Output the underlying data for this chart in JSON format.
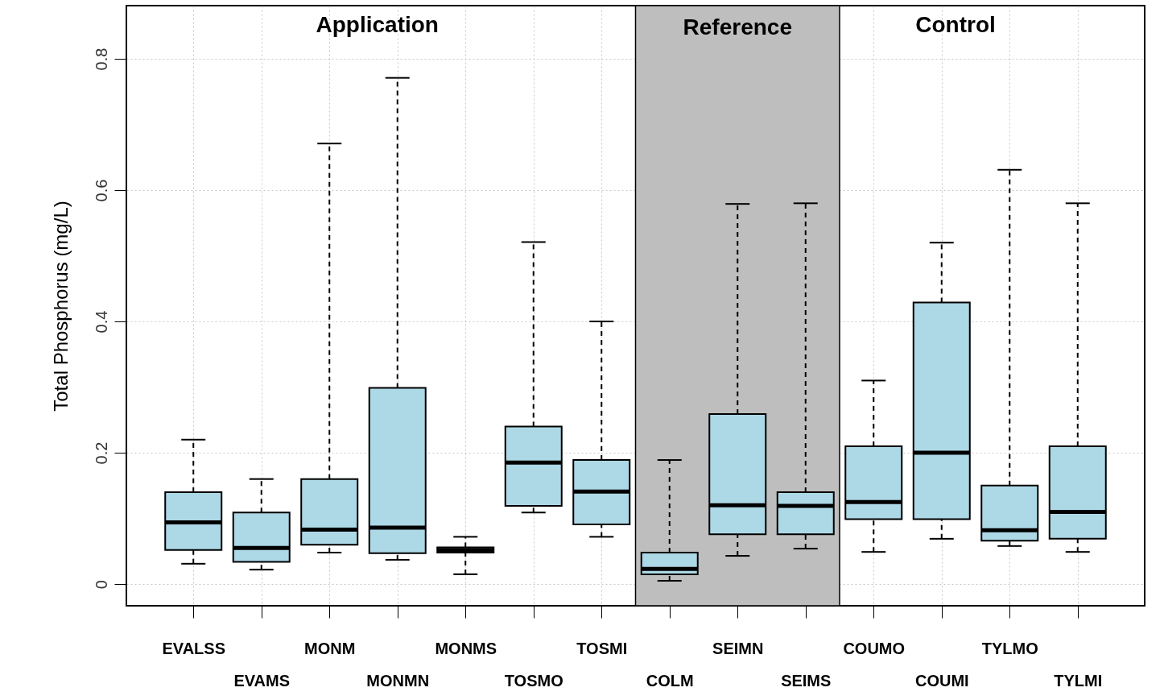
{
  "chart_data": {
    "type": "box",
    "ylabel": "Total Phosphorus (mg/L)",
    "categories": [
      "EVALSS",
      "EVAMS",
      "MONM",
      "MONMN",
      "MONMS",
      "TOSMO",
      "TOSMI",
      "COLM",
      "SEIMN",
      "SEIMS",
      "COUMO",
      "COUMI",
      "TYLMO",
      "TYLMI"
    ],
    "series": [
      {
        "color": "#add8e6",
        "boxes": [
          {
            "low": 0.031,
            "q1": 0.052,
            "median": 0.094,
            "q3": 0.14,
            "high": 0.22
          },
          {
            "low": 0.022,
            "q1": 0.034,
            "median": 0.055,
            "q3": 0.109,
            "high": 0.16
          },
          {
            "low": 0.048,
            "q1": 0.06,
            "median": 0.083,
            "q3": 0.16,
            "high": 0.671
          },
          {
            "low": 0.037,
            "q1": 0.047,
            "median": 0.086,
            "q3": 0.299,
            "high": 0.771
          },
          {
            "low": 0.015,
            "q1": 0.048,
            "median": 0.052,
            "q3": 0.056,
            "high": 0.072
          },
          {
            "low": 0.109,
            "q1": 0.119,
            "median": 0.185,
            "q3": 0.24,
            "high": 0.521
          },
          {
            "low": 0.072,
            "q1": 0.091,
            "median": 0.141,
            "q3": 0.189,
            "high": 0.4
          },
          {
            "low": 0.005,
            "q1": 0.015,
            "median": 0.023,
            "q3": 0.048,
            "high": 0.189
          },
          {
            "low": 0.043,
            "q1": 0.076,
            "median": 0.12,
            "q3": 0.259,
            "high": 0.579
          },
          {
            "low": 0.054,
            "q1": 0.076,
            "median": 0.119,
            "q3": 0.14,
            "high": 0.58
          },
          {
            "low": 0.049,
            "q1": 0.099,
            "median": 0.125,
            "q3": 0.21,
            "high": 0.31
          },
          {
            "low": 0.069,
            "q1": 0.099,
            "median": 0.2,
            "q3": 0.429,
            "high": 0.52
          },
          {
            "low": 0.058,
            "q1": 0.066,
            "median": 0.082,
            "q3": 0.15,
            "high": 0.631
          },
          {
            "low": 0.049,
            "q1": 0.069,
            "median": 0.11,
            "q3": 0.21,
            "high": 0.58
          }
        ]
      }
    ],
    "ylim": [
      -0.033,
      0.881
    ],
    "yticks": [
      0,
      0.2,
      0.4,
      0.6,
      0.8
    ],
    "grid": true,
    "bands": [
      {
        "axis": "x",
        "from": "COLM",
        "to": "SEIMS",
        "label": "Reference",
        "color": "#bebebe"
      }
    ],
    "annotations": [
      "Application",
      "Control"
    ]
  }
}
